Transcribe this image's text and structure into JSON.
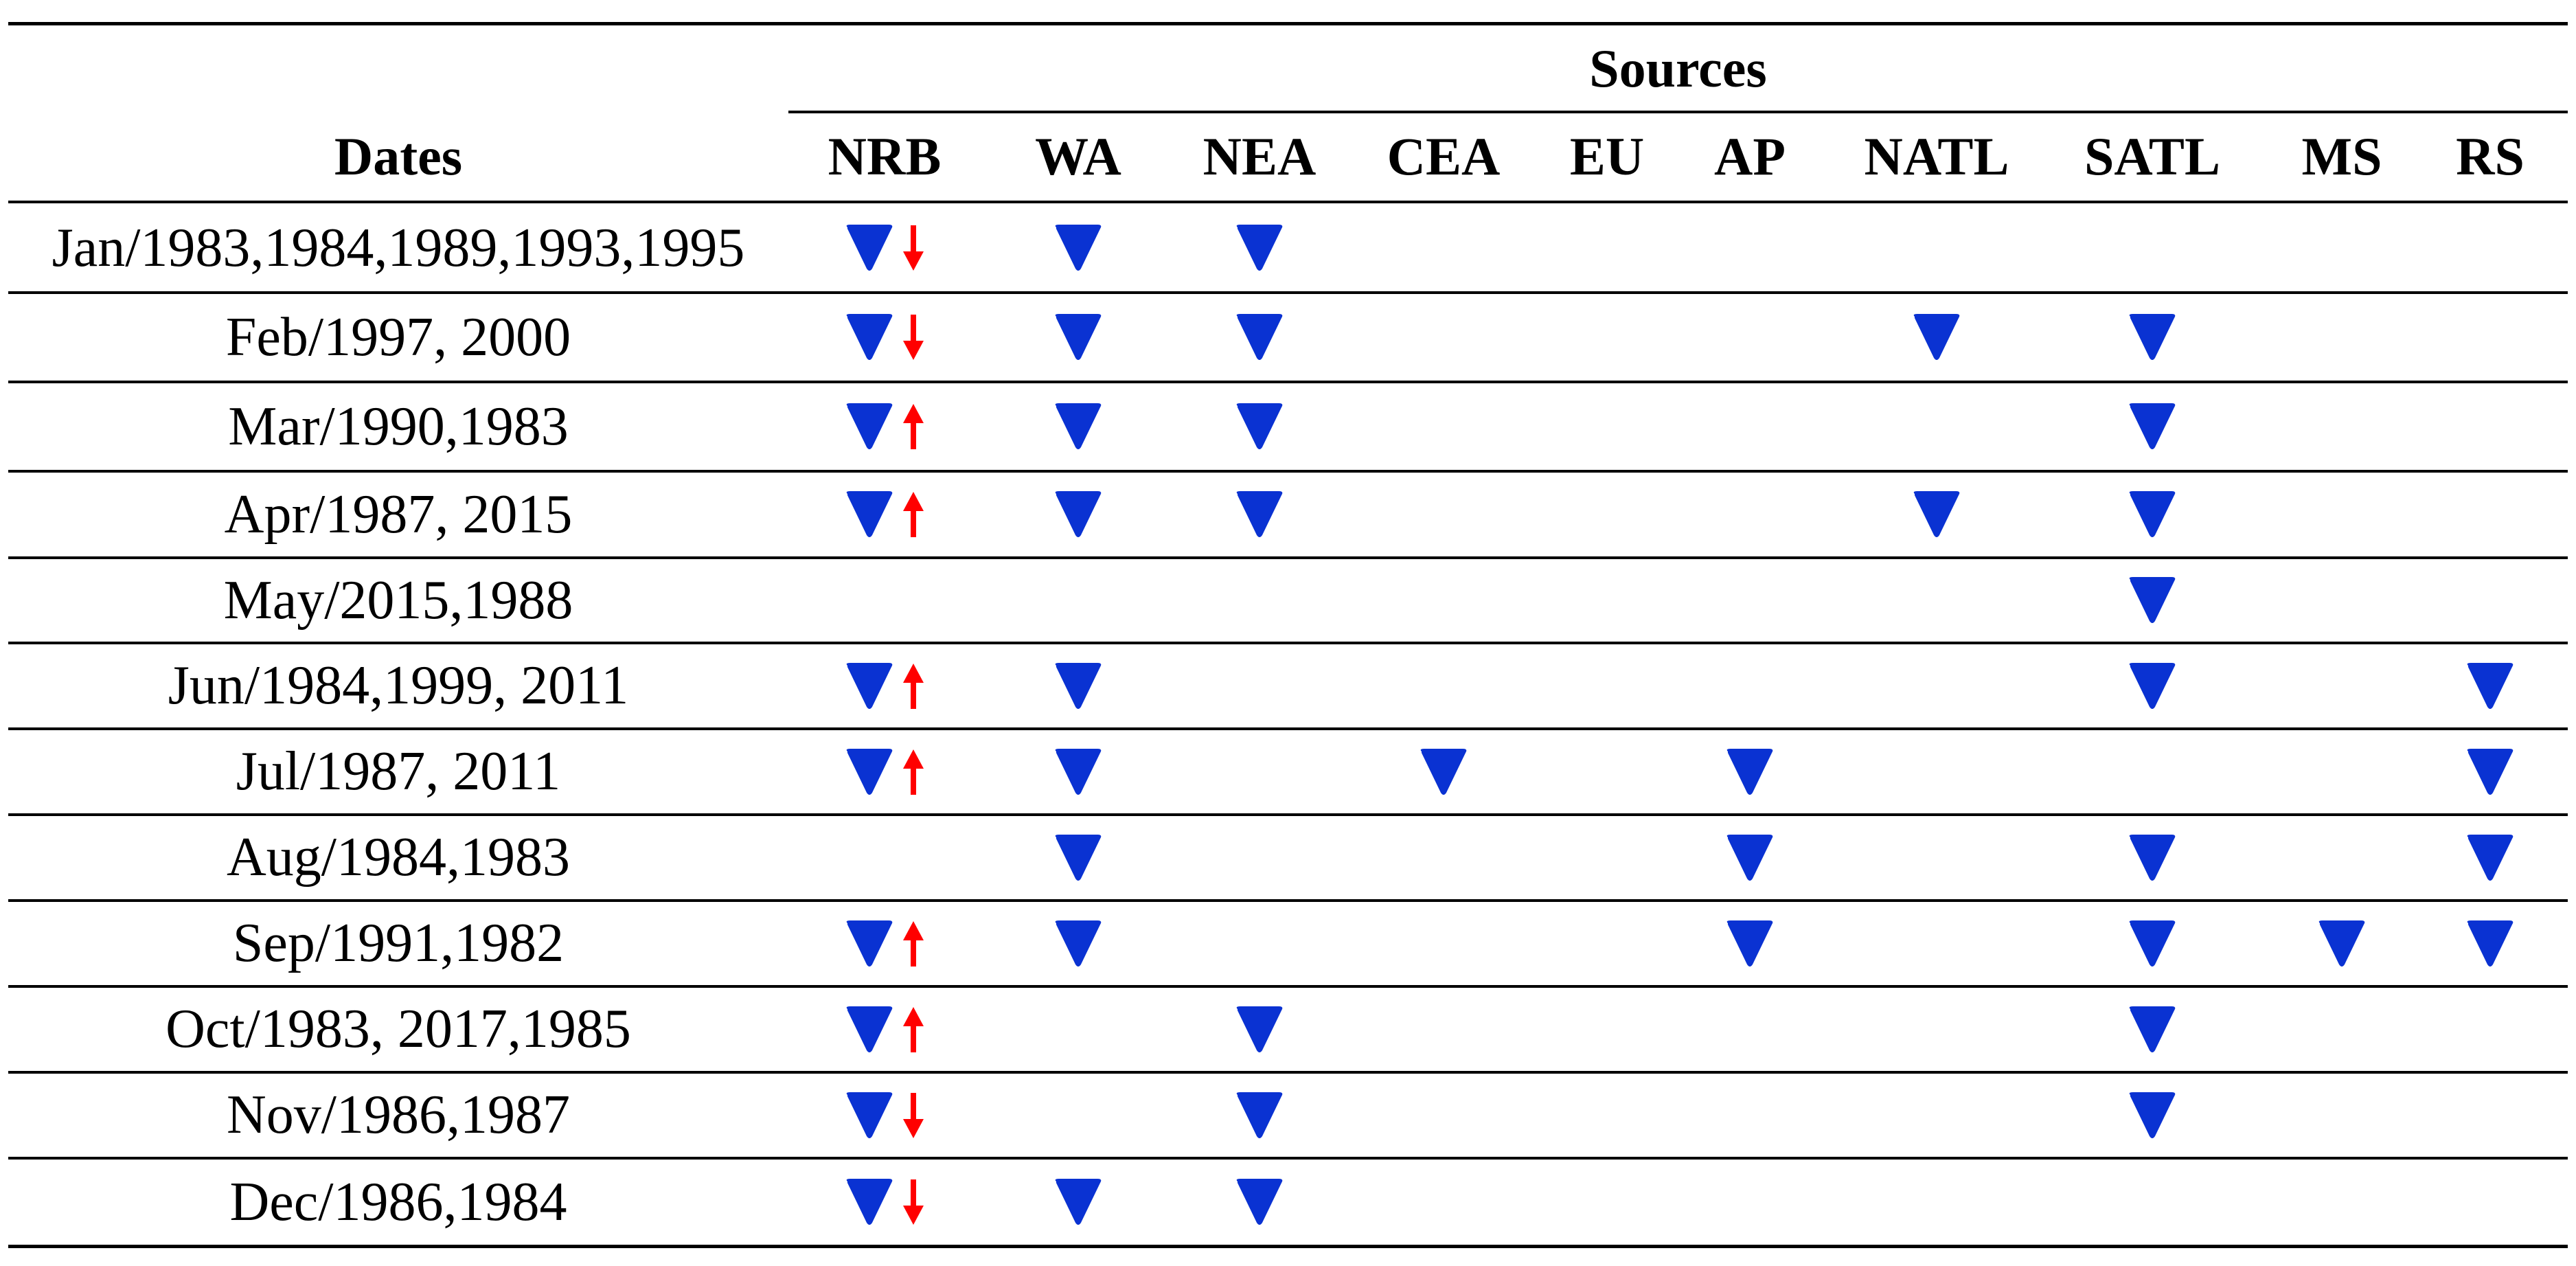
{
  "table": {
    "sources_label": "Sources",
    "dates_label": "Dates",
    "columns": [
      "NRB",
      "WA",
      "NEA",
      "CEA",
      "EU",
      "AP",
      "NATL",
      "SATL",
      "MS",
      "RS"
    ],
    "colors": {
      "down_triangle": "#0a32d2",
      "arrow": "#ff0000",
      "rule": "#000000"
    },
    "legend_icons": {
      "down_triangle": "blue-down-triangle-icon",
      "down_arrow": "red-down-arrow-icon",
      "up_arrow": "red-up-arrow-icon"
    },
    "rows": [
      {
        "date": "Jan/1983,1984,1989,1993,1995",
        "nrb_arrow": "down",
        "marks": [
          "NRB",
          "WA",
          "NEA"
        ]
      },
      {
        "date": "Feb/1997, 2000",
        "nrb_arrow": "down",
        "marks": [
          "NRB",
          "WA",
          "NEA",
          "NATL",
          "SATL"
        ]
      },
      {
        "date": "Mar/1990,1983",
        "nrb_arrow": "up",
        "marks": [
          "NRB",
          "WA",
          "NEA",
          "SATL"
        ]
      },
      {
        "date": "Apr/1987, 2015",
        "nrb_arrow": "up",
        "marks": [
          "NRB",
          "WA",
          "NEA",
          "NATL",
          "SATL"
        ]
      },
      {
        "date": "May/2015,1988",
        "nrb_arrow": "",
        "marks": [
          "SATL"
        ]
      },
      {
        "date": "Jun/1984,1999, 2011",
        "nrb_arrow": "up",
        "marks": [
          "NRB",
          "WA",
          "SATL",
          "RS"
        ]
      },
      {
        "date": "Jul/1987, 2011",
        "nrb_arrow": "up",
        "marks": [
          "NRB",
          "WA",
          "CEA",
          "AP",
          "RS"
        ]
      },
      {
        "date": "Aug/1984,1983",
        "nrb_arrow": "",
        "marks": [
          "WA",
          "AP",
          "SATL",
          "RS"
        ]
      },
      {
        "date": "Sep/1991,1982",
        "nrb_arrow": "up",
        "marks": [
          "NRB",
          "WA",
          "AP",
          "SATL",
          "MS",
          "RS"
        ]
      },
      {
        "date": "Oct/1983, 2017,1985",
        "nrb_arrow": "up",
        "marks": [
          "NRB",
          "NEA",
          "SATL"
        ]
      },
      {
        "date": "Nov/1986,1987",
        "nrb_arrow": "down",
        "marks": [
          "NRB",
          "NEA",
          "SATL"
        ]
      },
      {
        "date": "Dec/1986,1984",
        "nrb_arrow": "down",
        "marks": [
          "NRB",
          "WA",
          "NEA"
        ]
      }
    ]
  }
}
